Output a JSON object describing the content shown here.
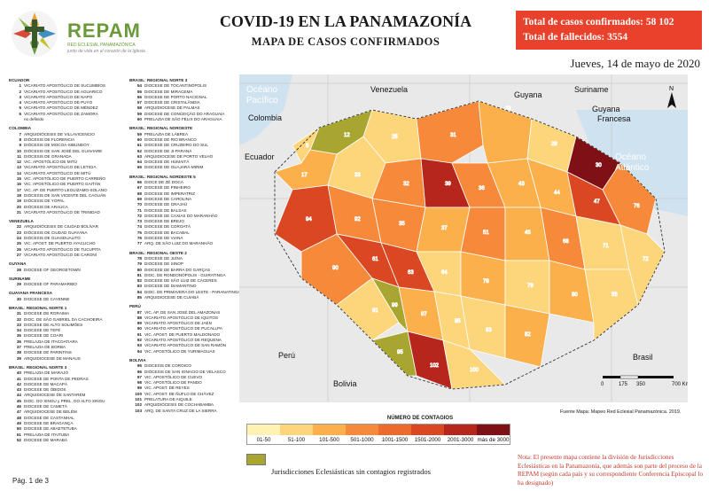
{
  "header": {
    "logo_name": "REPAM",
    "logo_sub": "RED ECLESIAL PANAMAZÓNICA",
    "logo_tagline": "junto de vida en el corazón de la Iglesia",
    "title": "COVID-19 EN LA PANAMAZONÍA",
    "subtitle": "MAPA DE CASOS CONFIRMADOS",
    "totals_confirmed": "Total de casos confirmados: 58 102",
    "totals_deaths": "Total de fallecidos: 3554",
    "date": "Jueves, 14 de mayo de 2020"
  },
  "index": {
    "col1": [
      {
        "h": "ECUADOR"
      },
      {
        "n": "1",
        "t": "VICARIATO APOSTÓLICO DE SUCUMBÍOS"
      },
      {
        "n": "2",
        "t": "VICARIATO APOSTÓLICO DE AGUARICO"
      },
      {
        "n": "3",
        "t": "VICARIATO APOSTÓLICO DE NAPO"
      },
      {
        "n": "4",
        "t": "VICARIATO APOSTÓLICO DE PUYO"
      },
      {
        "n": "5",
        "t": "VICARIATO APOSTÓLICO DE MÉNDEZ"
      },
      {
        "n": "6",
        "t": "VICARIATO APOSTÓLICO DE ZAMORA"
      },
      {
        "n": "",
        "t": "no definido"
      },
      {
        "h": "COLOMBIA"
      },
      {
        "n": "7",
        "t": "ARQUIDIÓCESIS DE VILLAVICENCIO"
      },
      {
        "n": "8",
        "t": "DIÓCESIS DE FLORENCIA"
      },
      {
        "n": "9",
        "t": "DIÓCESIS DE MOCOA-SIBUNDOY"
      },
      {
        "n": "10",
        "t": "DIÓCESIS DE SAN JOSÉ DEL GUAVIARE"
      },
      {
        "n": "11",
        "t": "DIÓCESIS DE GRANADA"
      },
      {
        "n": "12",
        "t": "VIC. APOSTÓLICO DE MITÚ"
      },
      {
        "n": "13",
        "t": "VICARIATO APOSTÓLICO DE LETICIA"
      },
      {
        "n": "14",
        "t": "VICARIATO APOSTÓLICO DE MITÚ"
      },
      {
        "n": "15",
        "t": "VIC. APOSTÓLICO DE PUERTO CARREÑO"
      },
      {
        "n": "16",
        "t": "VIC. APOSTÓLICO DE PUERTO GAITÁN"
      },
      {
        "n": "17",
        "t": "VIC. AP. DE PUERTO LEGUÍZAMO-SOLANO"
      },
      {
        "n": "18",
        "t": "DIÓCESIS DE SAN VICENTE DEL CAGUÁN"
      },
      {
        "n": "19",
        "t": "DIÓCESIS DE YOPAL"
      },
      {
        "n": "20",
        "t": "DIÓCESIS DE ARAUCA"
      },
      {
        "n": "21",
        "t": "VICARIATO APOSTÓLICO DE TRINIDAD"
      },
      {
        "h": "VENEZUELA"
      },
      {
        "n": "22",
        "t": "ARQUIDIÓCESIS DE CIUDAD BOLÍVAR"
      },
      {
        "n": "23",
        "t": "DIÓCESIS DE CIUDAD GUAYANA"
      },
      {
        "n": "24",
        "t": "DIÓCESIS DE GUASDUALITO"
      },
      {
        "n": "25",
        "t": "VIC. APOST. DE PUERTO AYACUCHO"
      },
      {
        "n": "26",
        "t": "VICARIATO APOSTÓLICO DE TUCUPITA"
      },
      {
        "n": "27",
        "t": "VICARIATO APOSTÓLICO DE CARONÍ"
      },
      {
        "h": "GUYANA"
      },
      {
        "n": "28",
        "t": "DIOCESE OF GEORGETOWN"
      },
      {
        "h": "SURINAME"
      },
      {
        "n": "29",
        "t": "DIOCESE OF PARAMARIBO"
      },
      {
        "h": "GUAYANA FRANCESA"
      },
      {
        "n": "30",
        "t": "DIOCESE DE CAYENNE"
      },
      {
        "h": "BRASIL: REGIONAL NORTE 1"
      },
      {
        "n": "31",
        "t": "DIOCESE DE RORAIMA"
      },
      {
        "n": "32",
        "t": "DIOC. DE SÃO GABRIEL DA CACHOEIRA"
      },
      {
        "n": "33",
        "t": "DIOCESE DE ALTO SOLIMÕES"
      },
      {
        "n": "34",
        "t": "DIOCESE DE TEFÉ"
      },
      {
        "n": "35",
        "t": "DIOCESE DE COARI"
      },
      {
        "n": "36",
        "t": "PRELAZIA DE ITACOATIARA"
      },
      {
        "n": "37",
        "t": "PRELAZIA DE BORBA"
      },
      {
        "n": "38",
        "t": "DIOCESE DE PARINTINS"
      },
      {
        "n": "39",
        "t": "ARQUIDIOCESE DE MANAUS"
      },
      {
        "h": "BRASIL: REGIONAL NORTE 3"
      },
      {
        "n": "40",
        "t": "PRELAZIA DE MARAJÓ"
      },
      {
        "n": "41",
        "t": "DIOCESE DE PONTA DE PEDRAS"
      },
      {
        "n": "42",
        "t": "DIOCESE DE MACAPÁ"
      },
      {
        "n": "43",
        "t": "DIOCESE DE ÓBIDOS"
      },
      {
        "n": "44",
        "t": "ARQUIDIOCESE DE SANTARÉM"
      },
      {
        "n": "45",
        "t": "DIOC. DO XINGU y PREL. DO ALTO XINGU"
      },
      {
        "n": "46",
        "t": "DIOCESE DE CAMETÁ"
      },
      {
        "n": "47",
        "t": "ARQUIDIOCESE DE BELÉM"
      },
      {
        "n": "48",
        "t": "DIOCESE DE CASTANHAL"
      },
      {
        "n": "49",
        "t": "DIOCESE DE BRAGANÇA"
      },
      {
        "n": "50",
        "t": "DIOCESE DE ABAETETUBA"
      },
      {
        "n": "51",
        "t": "PRELAZIA DE ITAITUBA"
      },
      {
        "n": "52",
        "t": "DIOCESE DE MARABÁ"
      }
    ],
    "col2": [
      {
        "h": "BRASIL: REGIONAL NORTE 3"
      },
      {
        "n": "54",
        "t": "DIOCESE DE TOCANTINÓPOLIS"
      },
      {
        "n": "55",
        "t": "DIOCESE DE MIRACEMA"
      },
      {
        "n": "56",
        "t": "DIOCESE DE PORTO NACIONAL"
      },
      {
        "n": "57",
        "t": "DIOCESE DE CRISTALÂNDIA"
      },
      {
        "n": "58",
        "t": "ARQUIDIOCESE DE PALMAS"
      },
      {
        "n": "59",
        "t": "DIOCESE DE CONCEIÇÃO DO ARAGUAIA"
      },
      {
        "n": "60",
        "t": "PRELAZIA DE SÃO FÉLIX DO ARAGUAIA"
      },
      {
        "h": "BRASIL: REGIONAL NOROESTE"
      },
      {
        "n": "59",
        "t": "PRELAZIA DE LÁBREA"
      },
      {
        "n": "60",
        "t": "DIOCESE DE RIO BRANCO"
      },
      {
        "n": "61",
        "t": "DIOCESE DE CRUZEIRO DO SUL"
      },
      {
        "n": "62",
        "t": "DIOCESE DE JI-PARANÁ"
      },
      {
        "n": "63",
        "t": "ARQUIDIOCESE DE PORTO VELHO"
      },
      {
        "n": "64",
        "t": "DIOCESE DE HUMAITÁ"
      },
      {
        "n": "65",
        "t": "DIOCESE DE GUAJARÁ-MIRIM"
      },
      {
        "h": "BRASIL: REGIONAL NORDESTE 5"
      },
      {
        "n": "66",
        "t": "DIOCE DE ZÉ DOCA"
      },
      {
        "n": "67",
        "t": "DIOCESE DE PINHEIRO"
      },
      {
        "n": "68",
        "t": "DIOCESE DE IMPERATRIZ"
      },
      {
        "n": "69",
        "t": "DIOCESE DE CAROLINA"
      },
      {
        "n": "70",
        "t": "DIOCESE DE GRAJAÚ"
      },
      {
        "n": "71",
        "t": "DIOCESE DE BALSAS"
      },
      {
        "n": "72",
        "t": "DIOCESE DE CAXIAS DO MARANHÃO"
      },
      {
        "n": "73",
        "t": "DIOCESE DE BREJO"
      },
      {
        "n": "74",
        "t": "DIOCESE DE COROATÁ"
      },
      {
        "n": "75",
        "t": "DIOCESE DE BACABAL"
      },
      {
        "n": "76",
        "t": "DIOCESE DE VIANA"
      },
      {
        "n": "77",
        "t": "ARQ. DE SÃO LUIZ DO MARANHÃO"
      },
      {
        "h": "BRASIL: REGIONAL OESTE 2"
      },
      {
        "n": "78",
        "t": "DIOCESE DE JUÍNA"
      },
      {
        "n": "79",
        "t": "DIOCESE DE SINOP"
      },
      {
        "n": "80",
        "t": "DIOCESE DE BARRA DO GARÇAS"
      },
      {
        "n": "81",
        "t": "DIOC. DE RONDONÓPOLIS - GUIRATINGA"
      },
      {
        "n": "82",
        "t": "DIOCESE DE SÃO LUIZ DE CÁCERES"
      },
      {
        "n": "83",
        "t": "DIOCESE DE DIAMANTINO"
      },
      {
        "n": "84",
        "t": "DIOC. DE PRIMAVERA DO LESTE - PARANATINGA"
      },
      {
        "n": "85",
        "t": "ARQUIDIOCESE DE CUIABÁ"
      },
      {
        "h": "PERÚ"
      },
      {
        "n": "87",
        "t": "VIC. AP. DE SAN JOSÉ DEL AMAZONAS"
      },
      {
        "n": "88",
        "t": "VICARIATO APOSTÓLICO DE IQUITOS"
      },
      {
        "n": "89",
        "t": "VICARIATO APOSTÓLICO DE JAÉN"
      },
      {
        "n": "90",
        "t": "VICARIATO APOSTÓLICO DE PUCALLPA"
      },
      {
        "n": "91",
        "t": "VIC. APOST. DE PUERTO MALDONADO"
      },
      {
        "n": "92",
        "t": "VICARIATO APOSTÓLICO DE REQUENA"
      },
      {
        "n": "93",
        "t": "VICARIATO APOSTÓLICO DE SAN RAMÓN"
      },
      {
        "n": "94",
        "t": "VIC. APOSTÓLICO DE YURIMAGUAS"
      },
      {
        "h": "BOLIVIA"
      },
      {
        "n": "95",
        "t": "DIOCESIS DE COROICO"
      },
      {
        "n": "96",
        "t": "DIÓCESIS DE SAN IGNACIO DE VELASCO"
      },
      {
        "n": "97",
        "t": "VIC. APOSTÓLICO DE CUEVO"
      },
      {
        "n": "98",
        "t": "VIC. APOSTÓLICO DE PANDO"
      },
      {
        "n": "99",
        "t": "VIC. APOST. DE REYES"
      },
      {
        "n": "100",
        "t": "VIC. APOST. DE ÑUFLO DE CHÁVEZ"
      },
      {
        "n": "101",
        "t": "PRELATURA DE AIQUILE"
      },
      {
        "n": "102",
        "t": "ARQUIDIÓCESIS DE COCHABAMBA"
      },
      {
        "n": "103",
        "t": "ARQ. DE SANTA CRUZ DE LA SIERRA"
      }
    ]
  },
  "map": {
    "labels": {
      "ocean_pacific": "Océano Pacífico",
      "ocean_atlantic": "Océano Atlántico",
      "venezuela": "Venezuela",
      "colombia": "Colombia",
      "ecuador": "Ecuador",
      "guyana": "Guyana",
      "suriname": "Suriname",
      "guyana_francesa": "Guyana Francesa",
      "peru": "Perú",
      "bolivia": "Bolivia",
      "brasil": "Brasil"
    },
    "scale_labels": [
      "0",
      "175",
      "350",
      "700 Km"
    ],
    "north": "N"
  },
  "legend": {
    "title": "NÚMERO DE CONTAGIOS",
    "bins": [
      {
        "label": "01-50",
        "color": "#fff2b3"
      },
      {
        "label": "51-100",
        "color": "#fdd57a"
      },
      {
        "label": "101-500",
        "color": "#fbb04c"
      },
      {
        "label": "501-1000",
        "color": "#f7893a"
      },
      {
        "label": "1001-1500",
        "color": "#ec6a2c"
      },
      {
        "label": "1501-2000",
        "color": "#d94823"
      },
      {
        "label": "2001-3000",
        "color": "#b7261c"
      },
      {
        "label": "más de 3000",
        "color": "#7e1016"
      }
    ],
    "nodata_color": "#a8a530",
    "nodata_label": "Jurisdicciones Eclesiásticas sin contagios registrados",
    "source": "Fuente Mapa: Mapeo Red Eclesial Panamazónica. 2019."
  },
  "note": "Nota: El presente mapa contiene la división de Jurisdicciones Eclesiásticas en la Panamazonía, que además son parte del proceso de la REPAM (según cada país y su correspondiente Conferencia Episcopal lo ha designado)",
  "page": "Pág. 1 de 3"
}
